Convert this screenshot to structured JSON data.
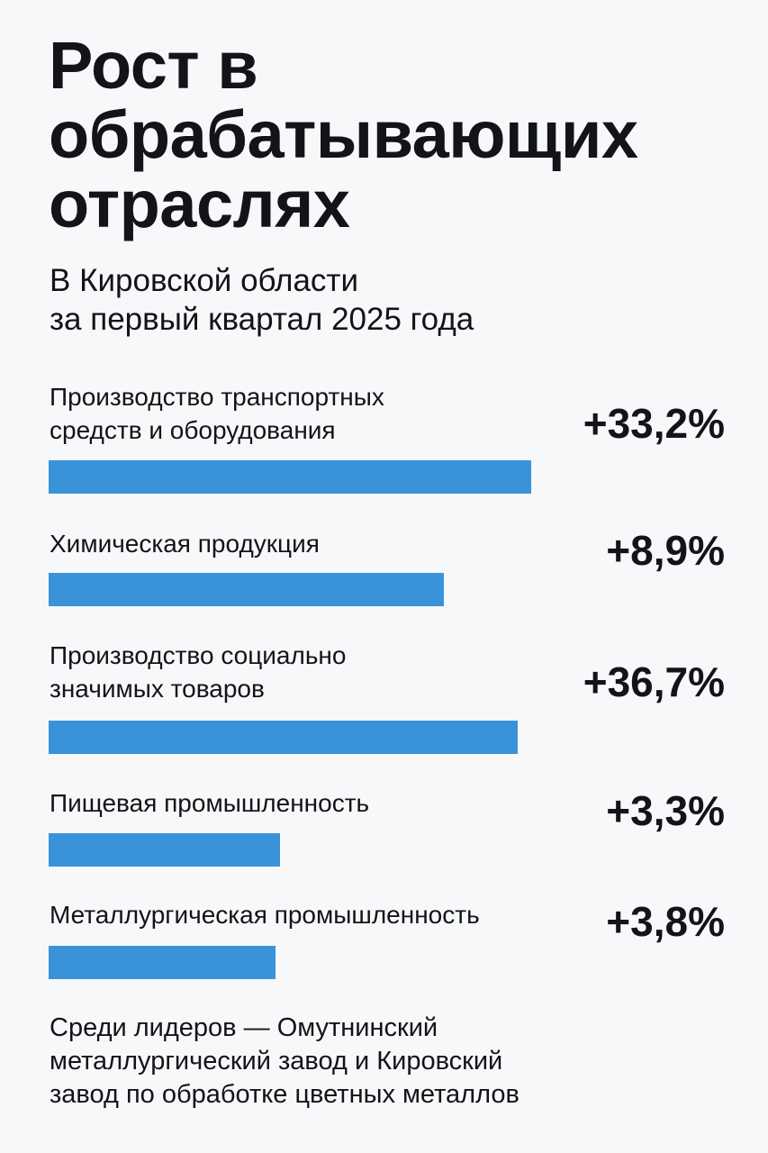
{
  "header": {
    "title": "Рост в обрабатывающих отраслях",
    "subtitle_line1": "В Кировской области",
    "subtitle_line2": "за первый квартал 2025 года"
  },
  "chart_data": {
    "type": "bar",
    "orientation": "horizontal",
    "bar_color": "#3a93d9",
    "categories": [
      "Производство транспортных средств и оборудования",
      "Химическая продукция",
      "Производство социально значимых товаров",
      "Пищевая промышленность",
      "Металлургическая промышленность"
    ],
    "values": [
      33.2,
      8.9,
      36.7,
      3.3,
      3.8
    ],
    "value_labels": [
      "+33,2%",
      "+8,9%",
      "+36,7%",
      "+3,3%",
      "+3,8%"
    ],
    "bar_fill_fractions": [
      0.916,
      0.75,
      0.89,
      0.44,
      0.43
    ],
    "rows": [
      {
        "label_lines": [
          "Производство транспортных",
          "средств и оборудования"
        ],
        "value_label": "+33,2%"
      },
      {
        "label_lines": [
          "Химическая продукция"
        ],
        "value_label": "+8,9%"
      },
      {
        "label_lines": [
          "Производство социально",
          "значимых товаров"
        ],
        "value_label": "+36,7%"
      },
      {
        "label_lines": [
          "Пищевая промышленность"
        ],
        "value_label": "+3,3%"
      },
      {
        "label_lines": [
          "Металлургическая промышленность"
        ],
        "value_label": "+3,8%"
      }
    ]
  },
  "footnote": {
    "line1": "Среди лидеров — Омутнинский",
    "line2": "металлургический завод и Кировский",
    "line3": "завод по обработке цветных металлов"
  }
}
